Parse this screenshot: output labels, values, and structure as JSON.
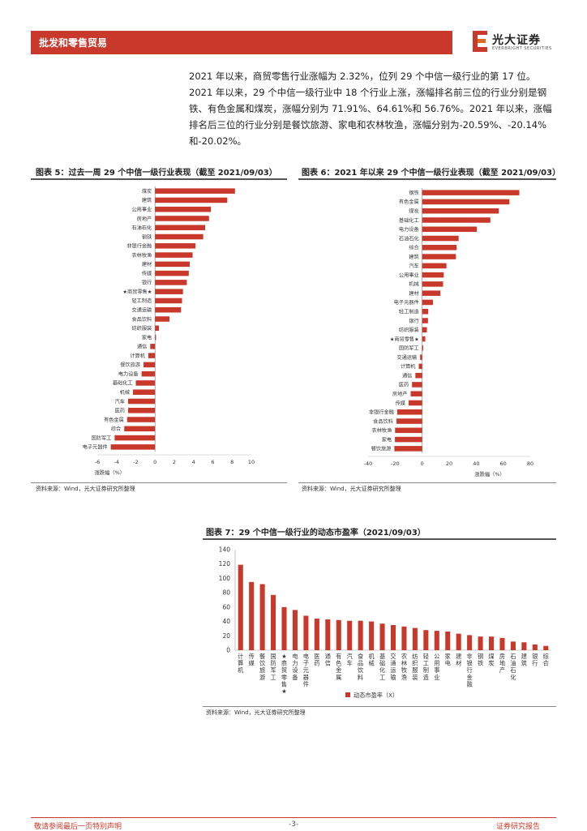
{
  "header": {
    "section_title": "批发和零售贸易",
    "brand_cn": "光大证券",
    "brand_en": "EVERBRIGHT SECURITIES"
  },
  "paragraph": "2021 年以来，商贸零售行业涨幅为 2.32%，位列 29 个中信一级行业的第 17 位。2021 年以来，29 个中信一级行业中 18 个行业上涨，涨幅排名前三位的行业分别是钢铁、有色金属和煤炭，涨幅分别为 71.91%、64.61%和 56.76%。2021 年以来，涨幅排名后三位的行业分别是餐饮旅游、家电和农林牧渔，涨幅分别为-20.59%、-20.14%和-20.02%。",
  "figures": {
    "fig5": {
      "title": "图表 5：过去一周 29 个中信一级行业表现（截至 2021/09/03）",
      "source": "资料来源：Wind，光大证券研究所整理"
    },
    "fig6": {
      "title": "图表 6：2021 年以来 29 个中信一级行业表现（截至 2021/09/03）",
      "source": "资料来源：Wind，光大证券研究所整理"
    },
    "fig7": {
      "title": "图表 7：29 个中信一级行业的动态市盈率（2021/09/03）",
      "source": "资料来源：Wind，光大证券研究所整理"
    }
  },
  "chart_data": [
    {
      "type": "bar",
      "orientation": "horizontal",
      "categories": [
        "煤炭",
        "建筑",
        "公用事业",
        "房地产",
        "石油石化",
        "钢铁",
        "非银行金融",
        "农林牧渔",
        "建材",
        "传媒",
        "银行",
        "★商贸零售★",
        "轻工制造",
        "交通运输",
        "食品饮料",
        "纺织服装",
        "家电",
        "通信",
        "计算机",
        "餐饮旅游",
        "电力设备",
        "基础化工",
        "机械",
        "汽车",
        "医药",
        "有色金属",
        "综合",
        "国防军工",
        "电子元器件"
      ],
      "values": [
        8.3,
        7.5,
        5.8,
        5.6,
        5.2,
        5.0,
        4.2,
        3.9,
        3.6,
        3.5,
        3.3,
        2.9,
        2.8,
        2.7,
        1.5,
        0.4,
        0.1,
        -0.5,
        -0.7,
        -1.2,
        -1.4,
        -2.0,
        -2.3,
        -2.8,
        -2.8,
        -2.9,
        -3.2,
        -4.2,
        -4.6
      ],
      "xlim": [
        -6,
        10
      ],
      "xticks": [
        -6,
        -4,
        -2,
        0,
        2,
        4,
        6,
        8,
        10
      ],
      "xlabel": "涨跌幅（%）",
      "color": "#c8392b"
    },
    {
      "type": "bar",
      "orientation": "horizontal",
      "categories": [
        "钢铁",
        "有色金属",
        "煤炭",
        "基础化工",
        "电力设备",
        "石油石化",
        "综合",
        "建筑",
        "汽车",
        "公用事业",
        "机械",
        "建材",
        "电子元器件",
        "轻工制造",
        "银行",
        "纺织服装",
        "★商贸零售★",
        "国防军工",
        "交通运输",
        "计算机",
        "通信",
        "医药",
        "房地产",
        "传媒",
        "非银行金融",
        "食品饮料",
        "农林牧渔",
        "家电",
        "餐饮旅游"
      ],
      "values": [
        71.91,
        64.61,
        56.76,
        50.5,
        40.5,
        27.0,
        25.5,
        25.0,
        18.0,
        16.0,
        15.5,
        13.5,
        8.0,
        4.5,
        4.3,
        3.5,
        2.32,
        0.8,
        -1.5,
        -2.5,
        -5.0,
        -7.5,
        -8.5,
        -10.0,
        -18.5,
        -19.0,
        -20.02,
        -20.14,
        -20.59
      ],
      "xlim": [
        -40,
        80
      ],
      "xticks": [
        -40,
        -20,
        0,
        20,
        40,
        60,
        80
      ],
      "xlabel": "涨跌幅（%）",
      "color": "#c8392b"
    },
    {
      "type": "bar",
      "orientation": "vertical",
      "categories": [
        "计算机",
        "传媒",
        "餐饮旅游",
        "国防军工",
        "★商贸零售★",
        "电力设备",
        "电子元器件",
        "医药",
        "通信",
        "有色金属",
        "汽车",
        "食品饮料",
        "机械",
        "基础化工",
        "交通运输",
        "农林牧渔",
        "纺织服装",
        "轻工制造",
        "公用事业",
        "家电",
        "建材",
        "非银行金融",
        "钢铁",
        "煤炭",
        "房地产",
        "石油石化",
        "建筑",
        "银行",
        "综合"
      ],
      "values": [
        119,
        95,
        92,
        77,
        60,
        56,
        48,
        44,
        43,
        42,
        41,
        41,
        40,
        37,
        35,
        33,
        31,
        28,
        27,
        26,
        23,
        21,
        19,
        19,
        17,
        12,
        11,
        8,
        6
      ],
      "ylim": [
        0,
        140
      ],
      "yticks": [
        0,
        20,
        40,
        60,
        80,
        100,
        120,
        140
      ],
      "legend": "动态市盈率（X）",
      "color": "#c8392b"
    }
  ],
  "footer": {
    "left": "敬请参阅最后一页特别声明",
    "center": "-3-",
    "right": "证券研究报告"
  }
}
